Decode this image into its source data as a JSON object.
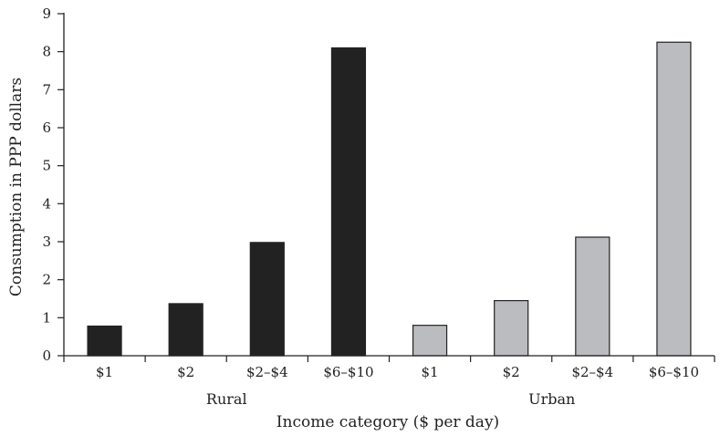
{
  "chart_data": {
    "type": "bar",
    "title": "",
    "xlabel": "Income category ($ per day)",
    "ylabel": "Consumption in PPP dollars",
    "ylim": [
      0,
      9
    ],
    "yticks": [
      "0",
      "1",
      "2",
      "3",
      "4",
      "5",
      "6",
      "7",
      "8",
      "9"
    ],
    "grid": false,
    "legend": "none",
    "groups": [
      {
        "label": "Rural",
        "color": "#222222",
        "categories": [
          "$1",
          "$2",
          "$2–$4",
          "$6–$10"
        ],
        "values": [
          0.78,
          1.37,
          2.98,
          8.1
        ]
      },
      {
        "label": "Urban",
        "color": "#bbbcbf",
        "categories": [
          "$1",
          "$2",
          "$2–$4",
          "$6–$10"
        ],
        "values": [
          0.8,
          1.45,
          3.12,
          8.25
        ]
      }
    ]
  }
}
